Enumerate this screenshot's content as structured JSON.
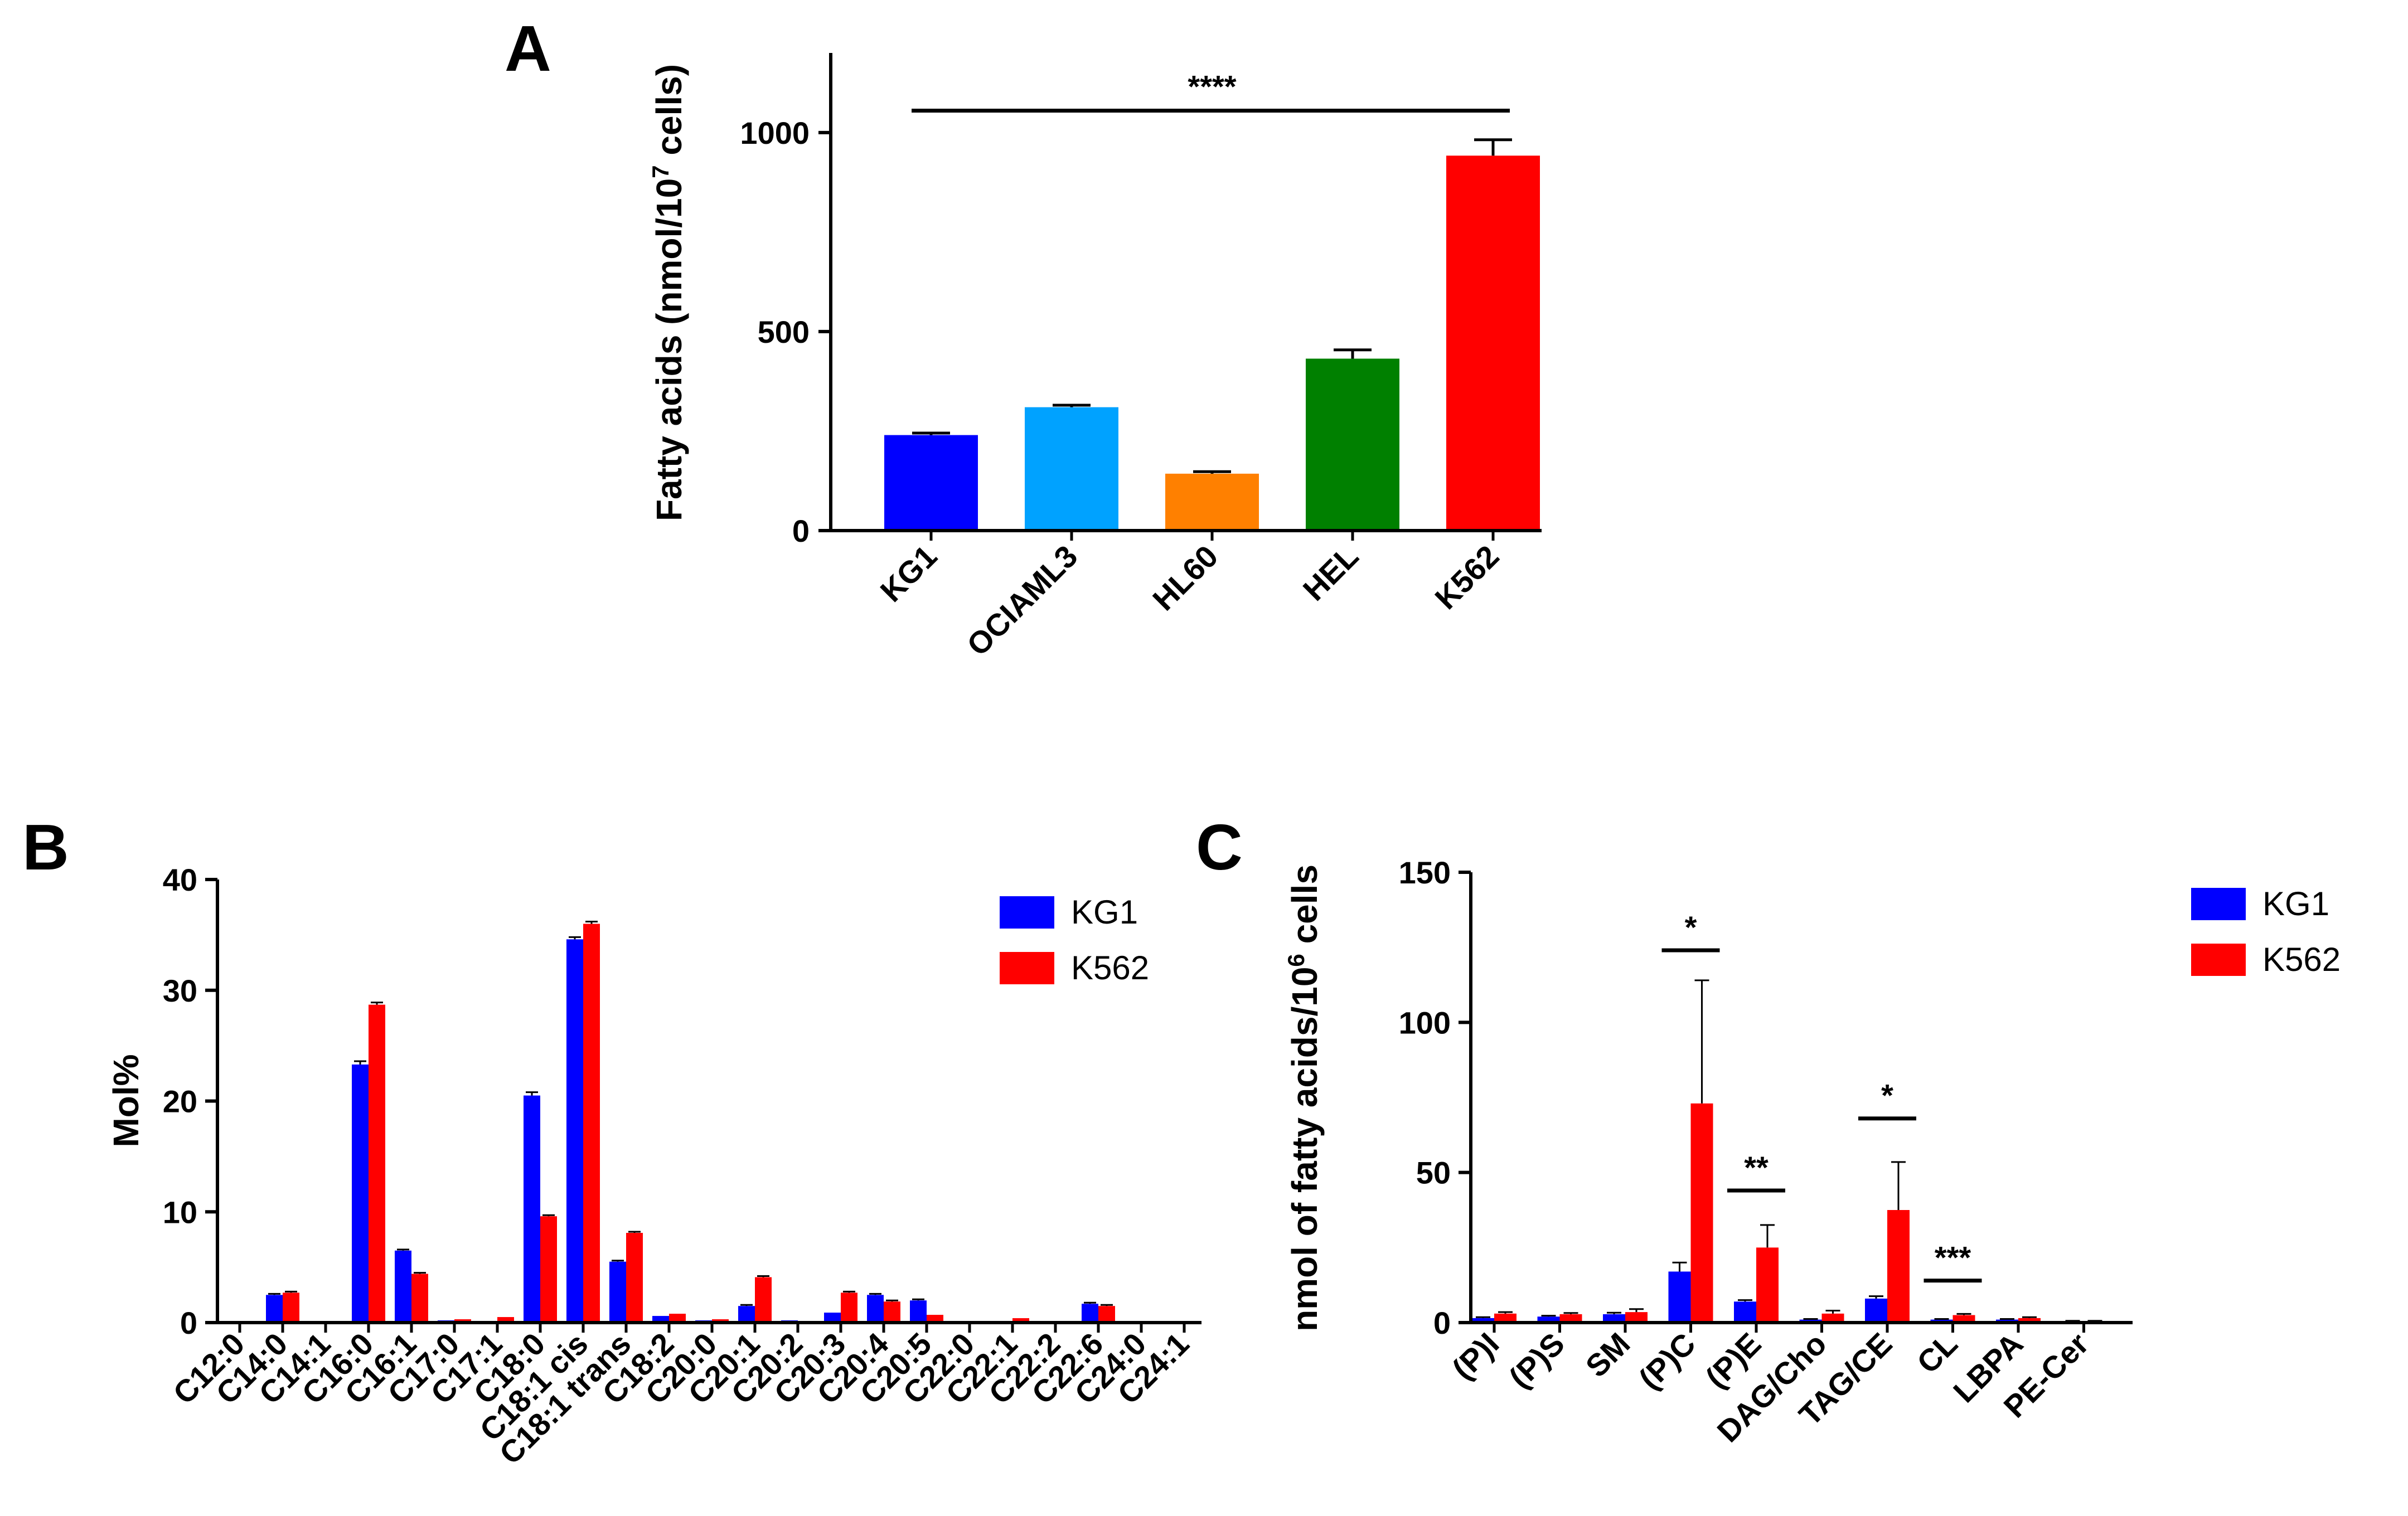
{
  "chart_data": [
    {
      "panel": "A",
      "type": "bar",
      "ylabel": "Fatty acids (nmol/10^7 cells)",
      "ylabel_parts": [
        "Fatty acids (nmol/10",
        "7",
        " cells)"
      ],
      "ylim": [
        0,
        1200
      ],
      "yticks": [
        0,
        500,
        1000
      ],
      "categories": [
        "KG1",
        "OCIAML3",
        "HL60",
        "HEL",
        "K562"
      ],
      "values": [
        240,
        310,
        143,
        432,
        942
      ],
      "errors": [
        5,
        5,
        5,
        22,
        40
      ],
      "colors": [
        "#0000ff",
        "#00a2ff",
        "#ff8000",
        "#008000",
        "#ff0000"
      ],
      "significance": [
        {
          "from": "KG1",
          "to": "K562",
          "label": "****"
        }
      ]
    },
    {
      "panel": "B",
      "type": "bar",
      "ylabel": "Mol%",
      "ylim": [
        0,
        40
      ],
      "yticks": [
        0,
        10,
        20,
        30,
        40
      ],
      "categories": [
        "C12:0",
        "C14:0",
        "C14:1",
        "C16:0",
        "C16:1",
        "C17:0",
        "C17:1",
        "C18:0",
        "C18:1 cis",
        "C18:1 trans",
        "C18:2",
        "C20:0",
        "C20:1",
        "C20:2",
        "C20:3",
        "C20:4",
        "C20:5",
        "C22:0",
        "C22:1",
        "C22:2",
        "C22:6",
        "C24:0",
        "C24:1"
      ],
      "series": [
        {
          "name": "KG1",
          "color": "#0000ff",
          "values": [
            0.1,
            2.5,
            0.1,
            23.3,
            6.5,
            0.2,
            0.1,
            20.5,
            34.6,
            5.5,
            0.6,
            0.2,
            1.5,
            0.2,
            0.9,
            2.5,
            2.0,
            0.1,
            0.1,
            0.1,
            1.7,
            0.1,
            0.1
          ],
          "errors": [
            0,
            0.1,
            0,
            0.3,
            0.1,
            0,
            0,
            0.3,
            0.2,
            0.1,
            0,
            0,
            0.1,
            0,
            0,
            0.1,
            0.1,
            0,
            0,
            0,
            0.1,
            0,
            0
          ]
        },
        {
          "name": "K562",
          "color": "#ff0000",
          "values": [
            0.1,
            2.7,
            0.1,
            28.7,
            4.4,
            0.3,
            0.5,
            9.6,
            36.0,
            8.1,
            0.8,
            0.3,
            4.1,
            0.1,
            2.7,
            1.9,
            0.7,
            0.1,
            0.4,
            0.1,
            1.5,
            0.1,
            0.1
          ],
          "errors": [
            0,
            0.1,
            0,
            0.2,
            0.1,
            0,
            0,
            0.1,
            0.2,
            0.1,
            0,
            0,
            0.1,
            0,
            0.1,
            0.1,
            0,
            0,
            0,
            0,
            0.1,
            0,
            0
          ]
        }
      ],
      "legend": [
        "KG1",
        "K562"
      ]
    },
    {
      "panel": "C",
      "type": "bar",
      "ylabel": "nmol of fatty acids/10^6 cells",
      "ylabel_parts": [
        "nmol of fatty acids/10",
        "6",
        " cells"
      ],
      "ylim": [
        0,
        150
      ],
      "yticks": [
        0,
        50,
        100,
        150
      ],
      "categories": [
        "(P)I",
        "(P)S",
        "SM",
        "(P)C",
        "(P)E",
        "DAG/Cho",
        "TAG/CE",
        "CL",
        "LBPA",
        "PE-Cer"
      ],
      "series": [
        {
          "name": "KG1",
          "color": "#0000ff",
          "values": [
            1.5,
            2.0,
            2.8,
            17.0,
            7.0,
            1.0,
            8.0,
            1.0,
            1.0,
            0.5
          ],
          "errors": [
            0.3,
            0.3,
            0.5,
            3.0,
            0.5,
            0.2,
            0.8,
            0.2,
            0.2,
            0.1
          ]
        },
        {
          "name": "K562",
          "color": "#ff0000",
          "values": [
            3.0,
            2.8,
            3.5,
            73.0,
            25.0,
            3.0,
            37.5,
            2.5,
            1.5,
            0.5
          ],
          "errors": [
            0.5,
            0.4,
            1.0,
            41.0,
            7.5,
            1.0,
            16.0,
            0.4,
            0.3,
            0.1
          ]
        }
      ],
      "legend": [
        "KG1",
        "K562"
      ],
      "significance": [
        {
          "category": "(P)C",
          "label": "*"
        },
        {
          "category": "(P)E",
          "label": "**"
        },
        {
          "category": "TAG/CE",
          "label": "*"
        },
        {
          "category": "CL",
          "label": "***"
        }
      ]
    }
  ]
}
